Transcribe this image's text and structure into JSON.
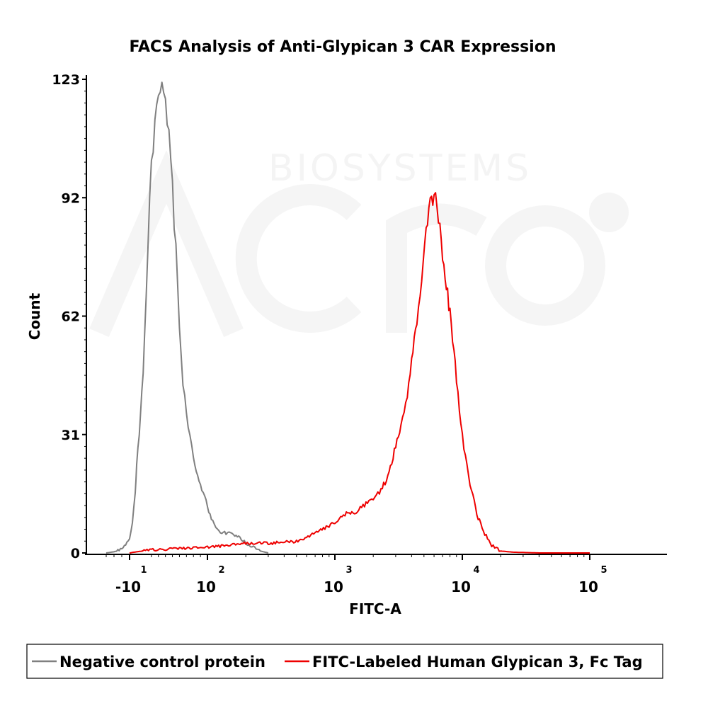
{
  "chart_data": {
    "type": "line",
    "title": "FACS Analysis of Anti-Glypican 3 CAR Expression",
    "xlabel": "FITC-A",
    "ylabel": "Count",
    "x_scale": "biexponential-log",
    "ylim": [
      0,
      123
    ],
    "y_ticks": [
      "0",
      "31",
      "62",
      "92",
      "123"
    ],
    "x_ticks": [
      {
        "value": -10,
        "base": "-10",
        "exp": "1"
      },
      {
        "value": 100,
        "base": "10",
        "exp": "2"
      },
      {
        "value": 1000,
        "base": "10",
        "exp": "3"
      },
      {
        "value": 10000,
        "base": "10",
        "exp": "4"
      },
      {
        "value": 100000,
        "base": "10",
        "exp": "5"
      }
    ],
    "grid": false,
    "legend_position": "bottom",
    "series": [
      {
        "name": "Negative control protein",
        "color": "#808080",
        "x": [
          -40,
          -30,
          -20,
          -15,
          -10,
          -6,
          -2,
          0,
          5,
          10,
          15,
          20,
          25,
          30,
          35,
          40,
          45,
          50,
          55,
          60,
          65,
          70,
          75,
          80,
          90,
          100,
          110,
          120,
          140,
          160,
          180,
          200,
          230,
          260,
          300
        ],
        "y": [
          0,
          0.3,
          1,
          2,
          3.5,
          8,
          15,
          22,
          35,
          55,
          80,
          100,
          112,
          118,
          123,
          116,
          108,
          95,
          78,
          60,
          45,
          36,
          30,
          24,
          18,
          12,
          8,
          6,
          5,
          5,
          4,
          2.5,
          1.5,
          0.5,
          0
        ]
      },
      {
        "name": "FITC-Labeled Human Glypican 3, Fc Tag",
        "color": "#ee0000",
        "x": [
          -10,
          0,
          20,
          50,
          100,
          150,
          200,
          300,
          500,
          700,
          900,
          1200,
          1500,
          1800,
          2000,
          2300,
          2600,
          3000,
          3300,
          3700,
          4000,
          4400,
          4800,
          5200,
          5600,
          6000,
          6500,
          7000,
          7500,
          8000,
          9000,
          10000,
          11500,
          13000,
          15000,
          17000,
          20000,
          25000,
          40000,
          100000
        ],
        "y": [
          0,
          0.3,
          0.8,
          1,
          1.5,
          2,
          2.5,
          2.5,
          3,
          5,
          7,
          10,
          11,
          13,
          14,
          16,
          20,
          28,
          32,
          40,
          50,
          60,
          70,
          82,
          90,
          93,
          88,
          78,
          70,
          62,
          45,
          30,
          18,
          10,
          5,
          2,
          0.5,
          0.2,
          0,
          0
        ]
      }
    ]
  },
  "watermark": {
    "text": "BIOSYSTEMS",
    "logo": "acro-logo"
  }
}
